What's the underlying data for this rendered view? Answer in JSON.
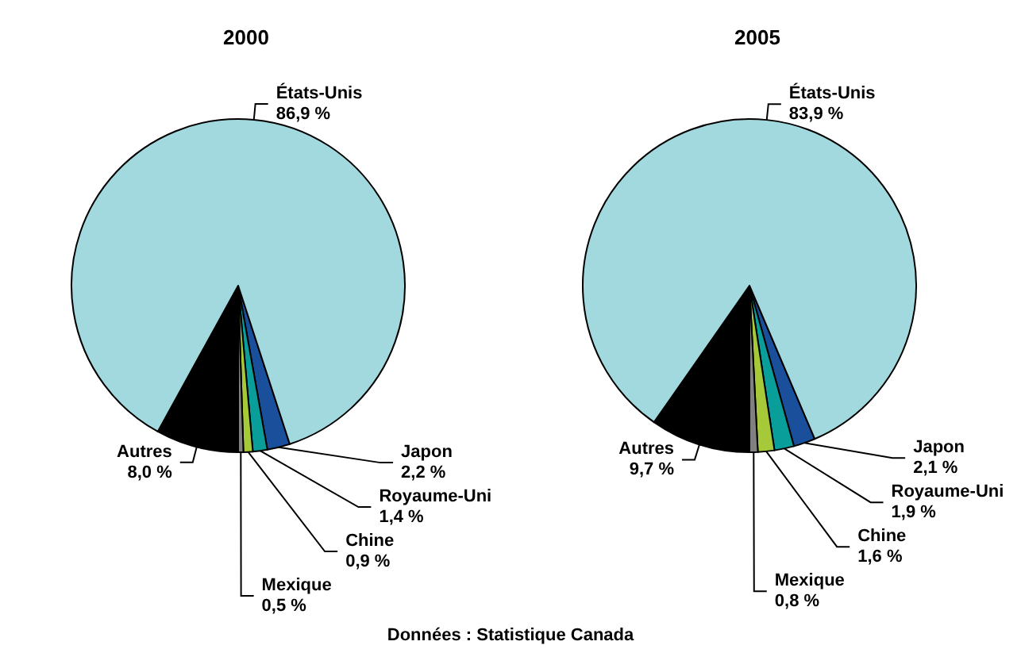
{
  "chart_data": [
    {
      "type": "pie",
      "title": "2000",
      "categories": [
        "Japon",
        "Royaume-Uni",
        "Chine",
        "Mexique",
        "Autres",
        "États-Unis"
      ],
      "values": [
        2.2,
        1.4,
        0.9,
        0.5,
        8.0,
        86.9
      ],
      "value_labels": [
        "2,2 %",
        "1,4 %",
        "0,9 %",
        "0,5 %",
        "8,0 %",
        "86,9 %"
      ],
      "colors": [
        "#1a4f9c",
        "#0a9e9a",
        "#a6c93a",
        "#808080",
        "#000000",
        "#a2d9de"
      ]
    },
    {
      "type": "pie",
      "title": "2005",
      "categories": [
        "Japon",
        "Royaume-Uni",
        "Chine",
        "Mexique",
        "Autres",
        "États-Unis"
      ],
      "values": [
        2.1,
        1.9,
        1.6,
        0.8,
        9.7,
        83.9
      ],
      "value_labels": [
        "2,1 %",
        "1,9 %",
        "1,6 %",
        "0,8 %",
        "9,7 %",
        "83,9 %"
      ],
      "colors": [
        "#1a4f9c",
        "#0a9e9a",
        "#a6c93a",
        "#808080",
        "#000000",
        "#a2d9de"
      ],
      "annotations": [
        "Données : Statistique Canada"
      ]
    }
  ]
}
